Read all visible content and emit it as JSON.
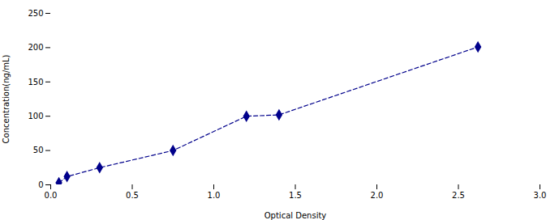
{
  "chart_data": {
    "type": "line",
    "xlabel": "Optical Density",
    "ylabel": "Concentration(ng/mL)",
    "x": [
      0.05,
      0.1,
      0.3,
      0.75,
      1.2,
      1.4,
      2.62
    ],
    "values": [
      3,
      12,
      25,
      50,
      100,
      102,
      201
    ],
    "color": "#00008B",
    "marker": "diamond",
    "line_style": "dashed",
    "xlim": [
      0,
      3
    ],
    "ylim": [
      0,
      250
    ],
    "xticks": [
      {
        "value": 0,
        "label": "0.0"
      },
      0.5,
      {
        "value": 1,
        "label": "1.0"
      },
      1.5,
      {
        "value": 2,
        "label": "2.0"
      },
      2.5,
      {
        "value": 3,
        "label": "3.0"
      }
    ],
    "yticks": [
      0,
      50,
      100,
      150,
      200,
      250
    ],
    "grid": false
  }
}
